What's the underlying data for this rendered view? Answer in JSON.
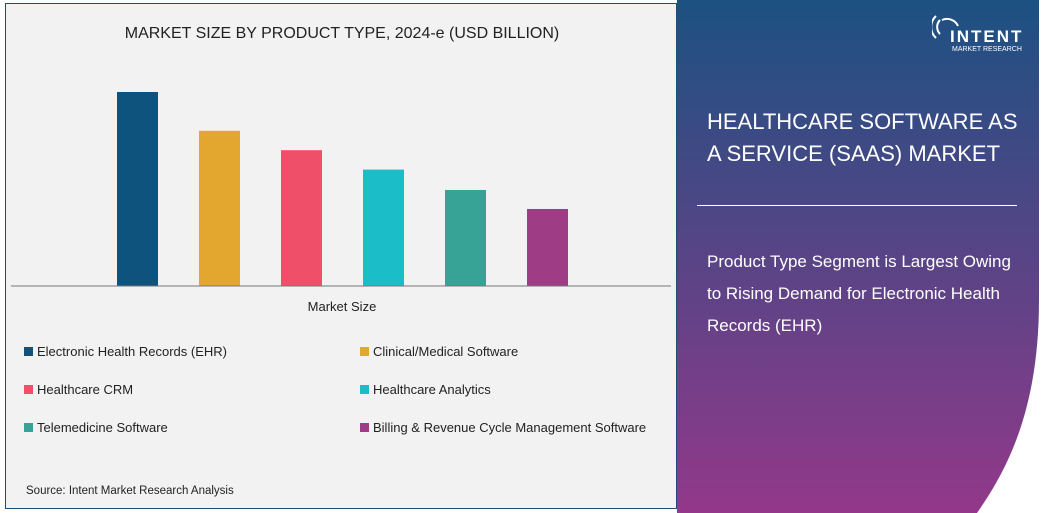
{
  "chart_data": {
    "type": "bar",
    "title": "MARKET SIZE BY PRODUCT TYPE, 2024-e (USD BILLION)",
    "xlabel": "Market Size",
    "ylabel": "",
    "categories": [
      "Electronic Health Records (EHR)",
      "Clinical/Medical Software",
      "Healthcare CRM",
      "Healthcare Analytics",
      "Telemedicine Software",
      "Billing & Revenue Cycle Management Software"
    ],
    "values": [
      100,
      80,
      70,
      60,
      49.5,
      39.7
    ],
    "colors": [
      "#0d537e",
      "#e3a72f",
      "#ef4f68",
      "#1bbdc8",
      "#37a296",
      "#9e3d86"
    ],
    "ylim": [
      0,
      100
    ],
    "grid": false,
    "legend": "bottom",
    "value_note_visible": false
  },
  "source": "Source:  Intent Market Research Analysis",
  "side": {
    "logo_word": "INTENT",
    "logo_sub": "MARKET RESEARCH",
    "headline": "HEALTHCARE SOFTWARE AS A SERVICE (SAAS) MARKET",
    "subtext": "Product Type Segment is Largest Owing to Rising Demand for Electronic Health Records (EHR)",
    "gradient_top": "#1c5182",
    "gradient_bottom": "#93388a"
  }
}
